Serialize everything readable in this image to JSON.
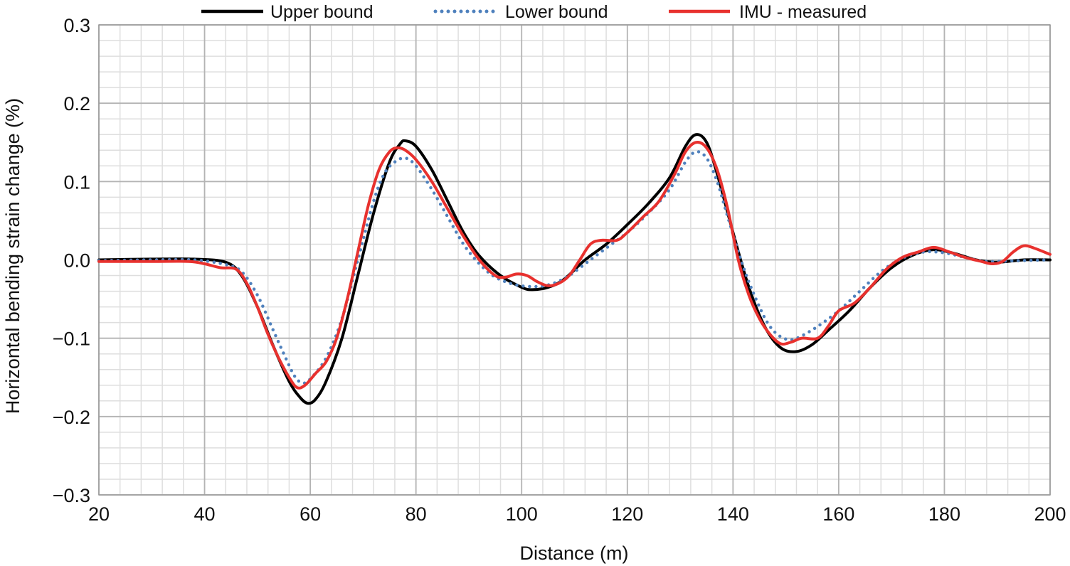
{
  "chart_data": {
    "type": "line",
    "title": "",
    "xlabel": "Distance (m)",
    "ylabel": "Horizontal bending strain change (%)",
    "xlim": [
      20,
      200
    ],
    "ylim": [
      -0.3,
      0.3
    ],
    "x_ticks": [
      20,
      40,
      60,
      80,
      100,
      120,
      140,
      160,
      180,
      200
    ],
    "x_tick_labels": [
      "20",
      "40",
      "60",
      "80",
      "100",
      "120",
      "140",
      "160",
      "180",
      "200"
    ],
    "y_ticks": [
      0.3,
      0.2,
      0.1,
      0.0,
      -0.1,
      -0.2,
      -0.3
    ],
    "y_tick_labels": [
      "0.3",
      "0.2",
      "0.1",
      "0.0",
      "−0.1",
      "−0.2",
      "−0.3"
    ],
    "grid": true,
    "minor_grid_x_step": 4,
    "minor_grid_y_step": 0.02,
    "legend_position": "top",
    "series": [
      {
        "name": "Upper bound",
        "style": "solid",
        "color": "#000000",
        "points": [
          [
            20,
            0.0
          ],
          [
            30,
            0.001
          ],
          [
            38,
            0.001
          ],
          [
            44,
            -0.003
          ],
          [
            47,
            -0.02
          ],
          [
            50,
            -0.06
          ],
          [
            53,
            -0.11
          ],
          [
            56,
            -0.155
          ],
          [
            58,
            -0.175
          ],
          [
            59.5,
            -0.183
          ],
          [
            61,
            -0.178
          ],
          [
            63,
            -0.155
          ],
          [
            66,
            -0.1
          ],
          [
            69,
            -0.02
          ],
          [
            72,
            0.06
          ],
          [
            75,
            0.125
          ],
          [
            77,
            0.148
          ],
          [
            78,
            0.152
          ],
          [
            80,
            0.145
          ],
          [
            83,
            0.115
          ],
          [
            86,
            0.075
          ],
          [
            89,
            0.035
          ],
          [
            92,
            0.005
          ],
          [
            96,
            -0.02
          ],
          [
            100,
            -0.035
          ],
          [
            102,
            -0.038
          ],
          [
            105,
            -0.035
          ],
          [
            108,
            -0.025
          ],
          [
            112,
            0.0
          ],
          [
            116,
            0.02
          ],
          [
            120,
            0.045
          ],
          [
            124,
            0.072
          ],
          [
            128,
            0.105
          ],
          [
            131,
            0.145
          ],
          [
            133,
            0.16
          ],
          [
            135,
            0.15
          ],
          [
            137,
            0.11
          ],
          [
            140,
            0.035
          ],
          [
            143,
            -0.035
          ],
          [
            146,
            -0.085
          ],
          [
            149,
            -0.112
          ],
          [
            152,
            -0.117
          ],
          [
            155,
            -0.108
          ],
          [
            158,
            -0.09
          ],
          [
            162,
            -0.065
          ],
          [
            166,
            -0.035
          ],
          [
            170,
            -0.01
          ],
          [
            174,
            0.006
          ],
          [
            178,
            0.013
          ],
          [
            182,
            0.008
          ],
          [
            186,
            0.0
          ],
          [
            190,
            -0.003
          ],
          [
            195,
            0.0
          ],
          [
            200,
            0.0
          ]
        ]
      },
      {
        "name": "Lower bound",
        "style": "dotted",
        "color": "#4f81bd",
        "points": [
          [
            20,
            -0.001
          ],
          [
            30,
            0.0
          ],
          [
            38,
            0.0
          ],
          [
            44,
            -0.006
          ],
          [
            47,
            -0.015
          ],
          [
            50,
            -0.045
          ],
          [
            53,
            -0.09
          ],
          [
            55,
            -0.12
          ],
          [
            57,
            -0.148
          ],
          [
            58.5,
            -0.157
          ],
          [
            60,
            -0.152
          ],
          [
            63,
            -0.125
          ],
          [
            66,
            -0.075
          ],
          [
            69,
            0.0
          ],
          [
            72,
            0.075
          ],
          [
            74,
            0.11
          ],
          [
            76,
            0.125
          ],
          [
            78,
            0.13
          ],
          [
            80,
            0.12
          ],
          [
            83,
            0.09
          ],
          [
            86,
            0.055
          ],
          [
            89,
            0.02
          ],
          [
            92,
            -0.005
          ],
          [
            95,
            -0.022
          ],
          [
            99,
            -0.032
          ],
          [
            103,
            -0.034
          ],
          [
            106,
            -0.03
          ],
          [
            109,
            -0.02
          ],
          [
            113,
            0.0
          ],
          [
            117,
            0.02
          ],
          [
            120,
            0.035
          ],
          [
            124,
            0.06
          ],
          [
            128,
            0.09
          ],
          [
            131,
            0.125
          ],
          [
            133,
            0.138
          ],
          [
            135,
            0.13
          ],
          [
            137,
            0.1
          ],
          [
            139,
            0.055
          ],
          [
            142,
            -0.01
          ],
          [
            145,
            -0.06
          ],
          [
            147,
            -0.085
          ],
          [
            149,
            -0.098
          ],
          [
            151,
            -0.102
          ],
          [
            153,
            -0.097
          ],
          [
            156,
            -0.085
          ],
          [
            160,
            -0.065
          ],
          [
            164,
            -0.04
          ],
          [
            168,
            -0.015
          ],
          [
            172,
            0.002
          ],
          [
            176,
            0.01
          ],
          [
            180,
            0.009
          ],
          [
            184,
            0.003
          ],
          [
            188,
            -0.002
          ],
          [
            194,
            -0.001
          ],
          [
            200,
            0.0
          ]
        ]
      },
      {
        "name": "IMU - measured",
        "style": "solid",
        "color": "#e8312e",
        "points": [
          [
            20,
            -0.002
          ],
          [
            30,
            -0.002
          ],
          [
            37,
            -0.002
          ],
          [
            40,
            -0.005
          ],
          [
            43,
            -0.01
          ],
          [
            46,
            -0.012
          ],
          [
            48,
            -0.03
          ],
          [
            50,
            -0.06
          ],
          [
            52,
            -0.095
          ],
          [
            54,
            -0.125
          ],
          [
            56,
            -0.15
          ],
          [
            57.5,
            -0.163
          ],
          [
            59,
            -0.16
          ],
          [
            61,
            -0.145
          ],
          [
            63,
            -0.13
          ],
          [
            65,
            -0.1
          ],
          [
            67,
            -0.05
          ],
          [
            69,
            0.01
          ],
          [
            71,
            0.07
          ],
          [
            73,
            0.115
          ],
          [
            75,
            0.138
          ],
          [
            76.5,
            0.143
          ],
          [
            78,
            0.14
          ],
          [
            80,
            0.128
          ],
          [
            83,
            0.1
          ],
          [
            86,
            0.065
          ],
          [
            89,
            0.03
          ],
          [
            92,
            0.0
          ],
          [
            95,
            -0.02
          ],
          [
            97,
            -0.022
          ],
          [
            99,
            -0.018
          ],
          [
            101,
            -0.02
          ],
          [
            103,
            -0.028
          ],
          [
            105,
            -0.033
          ],
          [
            107,
            -0.03
          ],
          [
            109,
            -0.02
          ],
          [
            111,
            0.0
          ],
          [
            113,
            0.02
          ],
          [
            115,
            0.025
          ],
          [
            118,
            0.025
          ],
          [
            120,
            0.035
          ],
          [
            123,
            0.055
          ],
          [
            126,
            0.075
          ],
          [
            129,
            0.11
          ],
          [
            131,
            0.138
          ],
          [
            133,
            0.15
          ],
          [
            135,
            0.143
          ],
          [
            137,
            0.115
          ],
          [
            139,
            0.065
          ],
          [
            141,
            0.0
          ],
          [
            143,
            -0.045
          ],
          [
            145,
            -0.075
          ],
          [
            147,
            -0.095
          ],
          [
            149,
            -0.107
          ],
          [
            151,
            -0.105
          ],
          [
            153,
            -0.1
          ],
          [
            156,
            -0.1
          ],
          [
            158,
            -0.085
          ],
          [
            160,
            -0.065
          ],
          [
            163,
            -0.055
          ],
          [
            166,
            -0.035
          ],
          [
            169,
            -0.012
          ],
          [
            172,
            0.003
          ],
          [
            175,
            0.01
          ],
          [
            178,
            0.016
          ],
          [
            181,
            0.01
          ],
          [
            184,
            0.003
          ],
          [
            187,
            -0.002
          ],
          [
            189,
            -0.005
          ],
          [
            191,
            -0.002
          ],
          [
            193,
            0.01
          ],
          [
            195,
            0.018
          ],
          [
            197,
            0.015
          ],
          [
            200,
            0.007
          ]
        ]
      }
    ]
  }
}
